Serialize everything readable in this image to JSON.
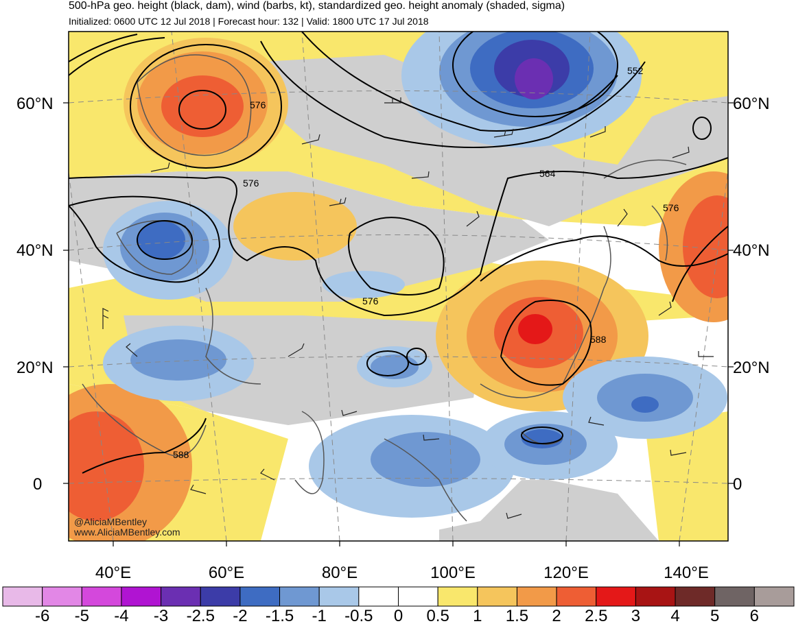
{
  "header": {
    "title": "500-hPa geo. height (black, dam), wind (barbs, kt), standardized geo. height anomaly (shaded, sigma)",
    "subtitle": "Initialized: 0600 UTC 12 Jul 2018 | Forecast hour: 132 | Valid: 1800 UTC 17 Jul 2018"
  },
  "map": {
    "region": "Asia / Western Pacific",
    "lat_labels": {
      "left": [
        "60°N",
        "40°N",
        "20°N",
        "0"
      ],
      "right": [
        "60°N",
        "40°N",
        "20°N",
        "0"
      ]
    },
    "lon_labels": [
      "40°E",
      "60°E",
      "80°E",
      "100°E",
      "120°E",
      "140°E"
    ],
    "contour_labels": [
      "552",
      "576",
      "576",
      "564",
      "576",
      "576",
      "588",
      "588"
    ],
    "features": {
      "positive_anomaly_centers": [
        "Scandinavia / NW Russia",
        "Central China",
        "Arabian Peninsula",
        "Japan east"
      ],
      "negative_anomaly_centers": [
        "Eastern Siberia",
        "Black Sea / Caspian",
        "Philippines",
        "Western Pacific"
      ]
    },
    "credits": [
      "@AliciaMBentley",
      "www.AliciaMBentley.com"
    ]
  },
  "colorbar": {
    "labels": [
      "-6",
      "-5",
      "-4",
      "-3",
      "-2.5",
      "-2",
      "-1.5",
      "-1",
      "-0.5",
      "0",
      "0.5",
      "1",
      "1.5",
      "2",
      "2.5",
      "3",
      "4",
      "5",
      "6"
    ],
    "colors": [
      "#e8b9e8",
      "#e287e6",
      "#d448dc",
      "#b014d2",
      "#6b2fb2",
      "#3c3ca8",
      "#3e6cc2",
      "#6f98d2",
      "#a9c8e8",
      "#ffffff",
      "#ffffff",
      "#f9e76c",
      "#f5c55c",
      "#f29a48",
      "#ee5e34",
      "#e41818",
      "#a81414",
      "#6e2a28",
      "#6f6464",
      "#a89c9a"
    ]
  }
}
